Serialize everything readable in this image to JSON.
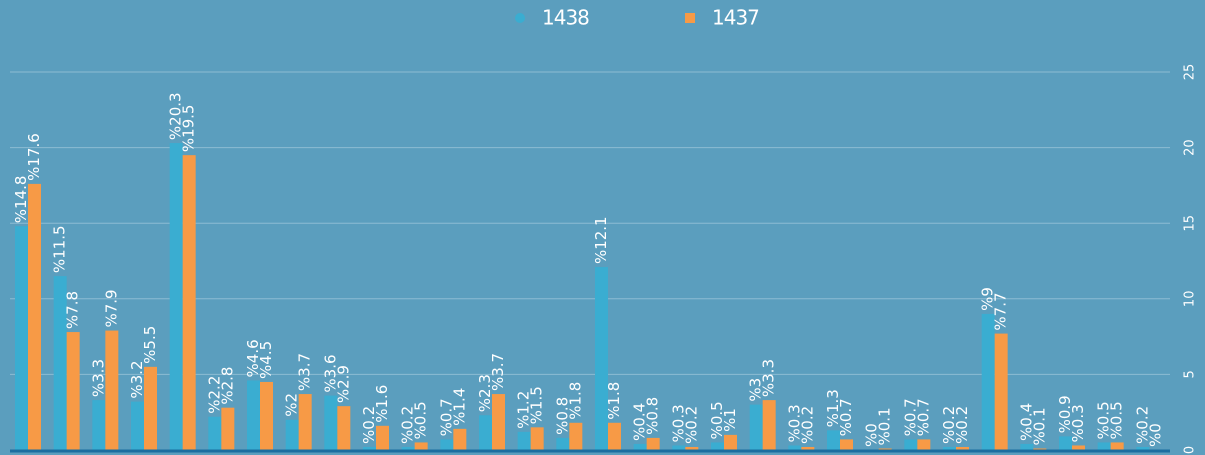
{
  "chart_data": {
    "type": "bar",
    "categories": [
      null,
      null,
      null,
      null,
      null,
      null,
      null,
      null,
      null,
      null,
      null,
      null,
      null,
      null,
      null,
      null,
      null,
      null,
      null,
      null,
      null,
      null,
      null,
      null,
      null,
      null,
      null,
      null,
      null,
      null
    ],
    "series": [
      {
        "name": "1438",
        "color": "#3aadd1",
        "values": [
          14.8,
          11.5,
          3.3,
          3.2,
          20.3,
          2.2,
          4.6,
          2,
          3.6,
          0.2,
          0.2,
          0.7,
          2.3,
          1.2,
          0.8,
          12.1,
          0.4,
          0.3,
          0.5,
          3,
          0.3,
          1.3,
          0,
          0.7,
          0.2,
          9,
          0.4,
          0.9,
          0.5,
          0.2
        ],
        "value_labels": [
          "%14.8",
          "%11.5",
          "%3.3",
          "%3.2",
          "%20.3",
          "%2.2",
          "%4.6",
          "%2",
          "%3.6",
          "%0.2",
          "%0.2",
          "%0.7",
          "%2.3",
          "%1.2",
          "%0.8",
          "%12.1",
          "%0.4",
          "%0.3",
          "%0.5",
          "%3",
          "%0.3",
          "%1.3",
          "%0",
          "%0.7",
          "%0.2",
          "%9",
          "%0.4",
          "%0.9",
          "%0.5",
          "%0.2"
        ]
      },
      {
        "name": "1437",
        "color": "#f79a46",
        "values": [
          17.6,
          7.8,
          7.9,
          5.5,
          19.5,
          2.8,
          4.5,
          3.7,
          2.9,
          1.6,
          0.5,
          1.4,
          3.7,
          1.5,
          1.8,
          1.8,
          0.8,
          0.2,
          1,
          3.3,
          0.2,
          0.7,
          0.1,
          0.7,
          0.2,
          7.7,
          0.1,
          0.3,
          0.5,
          0
        ],
        "value_labels": [
          "%17.6",
          "%7.8",
          "%7.9",
          "%5.5",
          "%19.5",
          "%2.8",
          "%4.5",
          "%3.7",
          "%2.9",
          "%1.6",
          "%0.5",
          "%1.4",
          "%3.7",
          "%1.5",
          "%1.8",
          "%1.8",
          "%0.8",
          "%0.2",
          "%1",
          "%3.3",
          "%0.2",
          "%0.7",
          "%0.1",
          "%0.7",
          "%0.2",
          "%7.7",
          "%0.1",
          "%0.3",
          "%0.5",
          "%0"
        ]
      }
    ],
    "ylim": [
      0,
      25
    ],
    "yticks": [
      0,
      5,
      10,
      15,
      20,
      25
    ],
    "grid": true,
    "legend": "top"
  }
}
